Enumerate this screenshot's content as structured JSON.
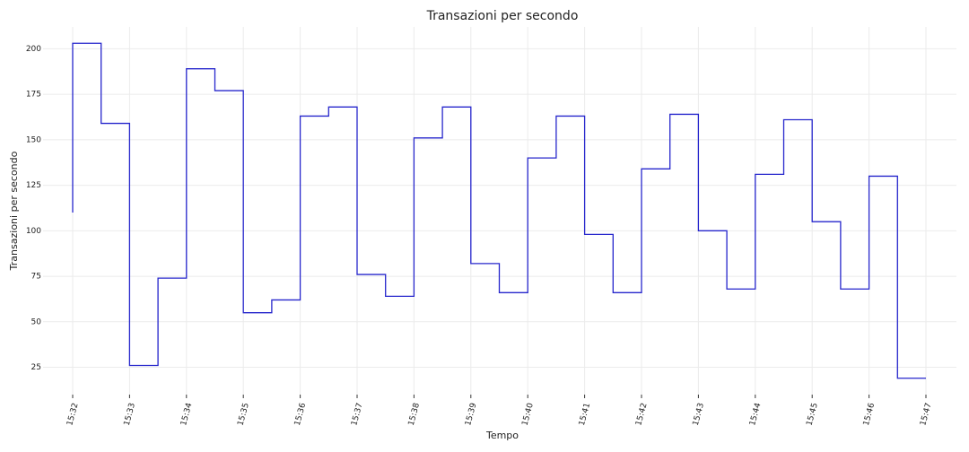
{
  "chart_data": {
    "type": "line",
    "step": "pre",
    "title": "Transazioni per secondo",
    "xlabel": "Tempo",
    "ylabel": "Transazioni per secondo",
    "categories": [
      "15:32",
      null,
      "15:33",
      null,
      "15:34",
      null,
      "15:35",
      null,
      "15:36",
      null,
      "15:37",
      null,
      "15:38",
      null,
      "15:39",
      null,
      "15:40",
      null,
      "15:41",
      null,
      "15:42",
      null,
      "15:43",
      null,
      "15:44",
      null,
      "15:45",
      null,
      "15:46",
      null,
      "15:47"
    ],
    "series": [
      {
        "name": "Transazioni per secondo",
        "color": "#2626cc",
        "values": [
          110,
          203,
          159,
          26,
          74,
          189,
          177,
          55,
          62,
          163,
          168,
          76,
          64,
          151,
          168,
          82,
          66,
          140,
          163,
          98,
          66,
          134,
          164,
          100,
          68,
          131,
          161,
          105,
          68,
          130,
          19
        ]
      }
    ],
    "ylim": [
      10,
      212
    ],
    "yticks": [
      25,
      50,
      75,
      100,
      125,
      150,
      175,
      200
    ],
    "grid": true
  }
}
